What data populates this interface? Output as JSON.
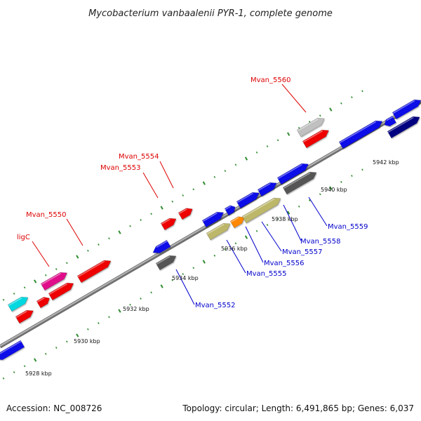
{
  "title": "Mycobacterium vanbaalenii PYR-1, complete genome",
  "footer": {
    "accession": "Accession: NC_008726",
    "summary": "Topology: circular; Length: 6,491,865 bp; Genes: 6,037"
  },
  "colors": {
    "backbone": "#999999",
    "tick": "#2e8b2e",
    "label_top": "#dd0000",
    "label_bottom": "#0000cc"
  },
  "ticks": [
    {
      "label": "5928 kbp"
    },
    {
      "label": "5930 kbp"
    },
    {
      "label": "5932 kbp"
    },
    {
      "label": "5934 kbp"
    },
    {
      "label": "5936 kbp"
    },
    {
      "label": "5938 kbp"
    },
    {
      "label": "5940 kbp"
    },
    {
      "label": "5942 kbp"
    }
  ],
  "gene_labels_top": [
    {
      "name": "Mvan_5560",
      "color": "red"
    },
    {
      "name": "Mvan_5554",
      "color": "red"
    },
    {
      "name": "Mvan_5553",
      "color": "red"
    },
    {
      "name": "Mvan_5550",
      "color": "red"
    },
    {
      "name": "ligC",
      "color": "red"
    }
  ],
  "gene_labels_bottom": [
    {
      "name": "Mvan_5559",
      "color": "blue"
    },
    {
      "name": "Mvan_5558",
      "color": "blue"
    },
    {
      "name": "Mvan_5557",
      "color": "blue"
    },
    {
      "name": "Mvan_5556",
      "color": "blue"
    },
    {
      "name": "Mvan_5555",
      "color": "blue"
    },
    {
      "name": "Mvan_5552",
      "color": "blue"
    }
  ]
}
